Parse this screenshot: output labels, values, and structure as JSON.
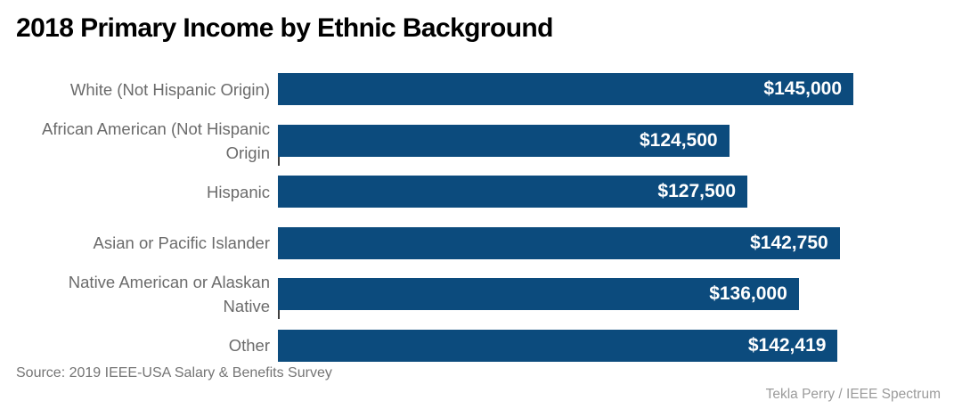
{
  "title": "2018 Primary Income by Ethnic Background",
  "source": "Source: 2019 IEEE-USA Salary & Benefits Survey",
  "credit": "Tekla Perry / IEEE Spectrum",
  "colors": {
    "bar": "#0c4b7d",
    "value_text": "#ffffff",
    "category_label": "#6b6b6b",
    "title_text": "#000000",
    "source_text": "#757575",
    "credit_text": "#9b9b9b",
    "background": "#ffffff"
  },
  "chart_data": {
    "type": "bar",
    "orientation": "horizontal",
    "title": "2018 Primary Income by Ethnic Background",
    "categories": [
      "White (Not Hispanic Origin)",
      "African American (Not Hispanic Origin",
      "Hispanic",
      "Asian or Pacific Islander",
      "Native American or Alaskan Native",
      "Other"
    ],
    "values": [
      145000,
      124500,
      127500,
      142750,
      136000,
      142419
    ],
    "value_labels": [
      "$145,000",
      "$124,500",
      "$127,500",
      "$142,750",
      "$136,000",
      "$142,419"
    ],
    "axis": {
      "min": 50000,
      "max": 150000,
      "gridlines": false,
      "axis_line_drawn": false
    },
    "legend": null,
    "rows": [
      {
        "label": "White (Not Hispanic Origin)",
        "value": 145000,
        "value_label": "$145,000",
        "tick": false
      },
      {
        "label": "African American (Not Hispanic\nOrigin",
        "value": 124500,
        "value_label": "$124,500",
        "tick": true
      },
      {
        "label": "Hispanic",
        "value": 127500,
        "value_label": "$127,500",
        "tick": false
      },
      {
        "label": "Asian or Pacific Islander",
        "value": 142750,
        "value_label": "$142,750",
        "tick": false
      },
      {
        "label": "Native American or Alaskan\nNative",
        "value": 136000,
        "value_label": "$136,000",
        "tick": true
      },
      {
        "label": "Other",
        "value": 142419,
        "value_label": "$142,419",
        "tick": false
      }
    ]
  }
}
